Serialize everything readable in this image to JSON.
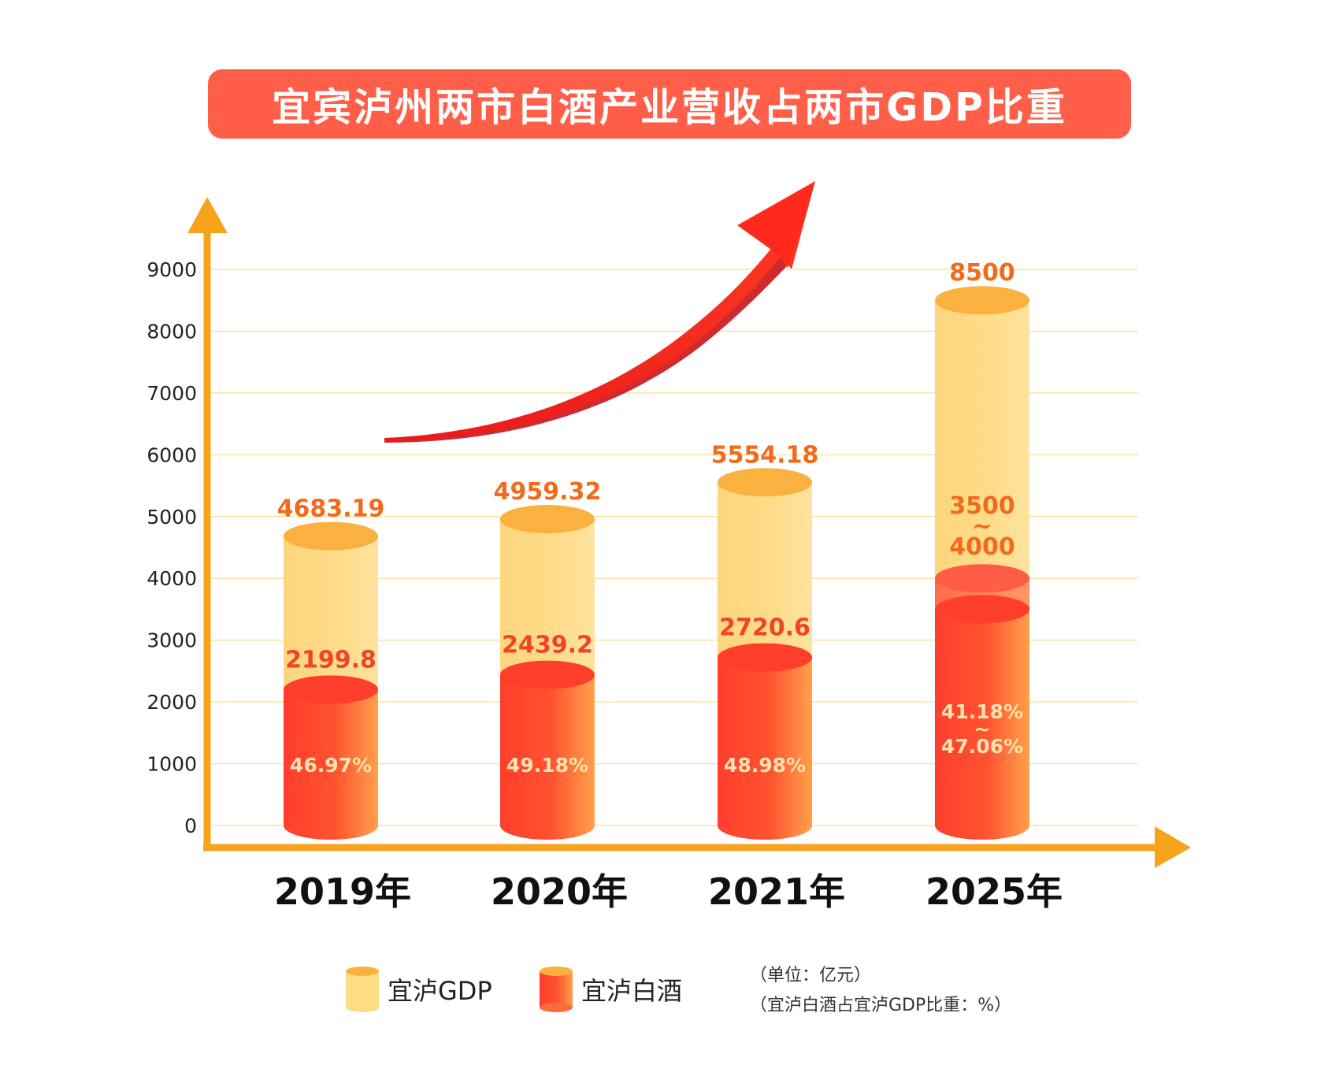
{
  "title": "宜宾泸州两市白酒产业营收占两市GDP比重",
  "notes": {
    "unit": "（单位：亿元）",
    "ratio": "（宜泸白酒占宜泸GDP比重：%）"
  },
  "colors": {
    "title_bg": "#ff5f49",
    "axis": "#f7a31c",
    "gdp_fill": "#fddc85",
    "gdp_top": "#fbb13f",
    "gdp_label": "#f26a1b",
    "liquor_fill": "#ff4a2d",
    "liquor_label": "#f0442b",
    "pct_label": "#ffe3b0",
    "arrow": "#f03322"
  },
  "chart_data": {
    "type": "bar",
    "categories": [
      "2019年",
      "2020年",
      "2021年",
      "2025年"
    ],
    "ylim": [
      0,
      9000
    ],
    "yticks": [
      0,
      1000,
      2000,
      3000,
      4000,
      5000,
      6000,
      7000,
      8000,
      9000
    ],
    "grid": true,
    "legend": [
      "宜泸GDP",
      "宜泸白酒"
    ],
    "series": [
      {
        "name": "宜泸GDP",
        "values": [
          4683.19,
          4959.32,
          5554.18,
          8500
        ],
        "labels": [
          "4683.19",
          "4959.32",
          "5554.18",
          "8500"
        ]
      },
      {
        "name": "宜泸白酒",
        "values": [
          2199.8,
          2439.2,
          2720.6,
          3500
        ],
        "values_high": [
          null,
          null,
          null,
          4000
        ],
        "labels": [
          "2199.8",
          "2439.2",
          "2720.6",
          "3500\n~\n4000"
        ]
      }
    ],
    "ratio_labels": [
      "46.97%",
      "49.18%",
      "48.98%",
      "41.18%\n~\n47.06%"
    ]
  }
}
